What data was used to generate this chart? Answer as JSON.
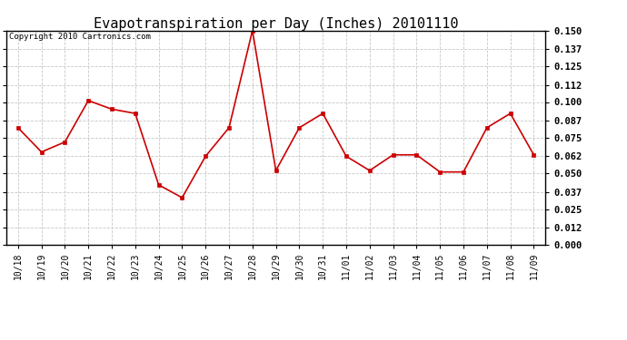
{
  "title": "Evapotranspiration per Day (Inches) 20101110",
  "copyright_text": "Copyright 2010 Cartronics.com",
  "x_labels": [
    "10/18",
    "10/19",
    "10/20",
    "10/21",
    "10/22",
    "10/23",
    "10/24",
    "10/25",
    "10/26",
    "10/27",
    "10/28",
    "10/29",
    "10/30",
    "10/31",
    "11/01",
    "11/02",
    "11/03",
    "11/04",
    "11/05",
    "11/06",
    "11/07",
    "11/08",
    "11/09"
  ],
  "y_values": [
    0.082,
    0.065,
    0.072,
    0.101,
    0.095,
    0.092,
    0.042,
    0.033,
    0.062,
    0.082,
    0.15,
    0.052,
    0.082,
    0.092,
    0.062,
    0.052,
    0.063,
    0.063,
    0.051,
    0.051,
    0.082,
    0.092,
    0.063
  ],
  "line_color": "#cc0000",
  "marker_color": "#cc0000",
  "bg_color": "#ffffff",
  "grid_color": "#c8c8c8",
  "yticks": [
    0.0,
    0.012,
    0.025,
    0.037,
    0.05,
    0.062,
    0.075,
    0.087,
    0.1,
    0.112,
    0.125,
    0.137,
    0.15
  ],
  "ylim": [
    0.0,
    0.15
  ],
  "title_fontsize": 11,
  "copyright_fontsize": 6.5,
  "tick_fontsize": 7,
  "ytick_fontsize": 7.5
}
